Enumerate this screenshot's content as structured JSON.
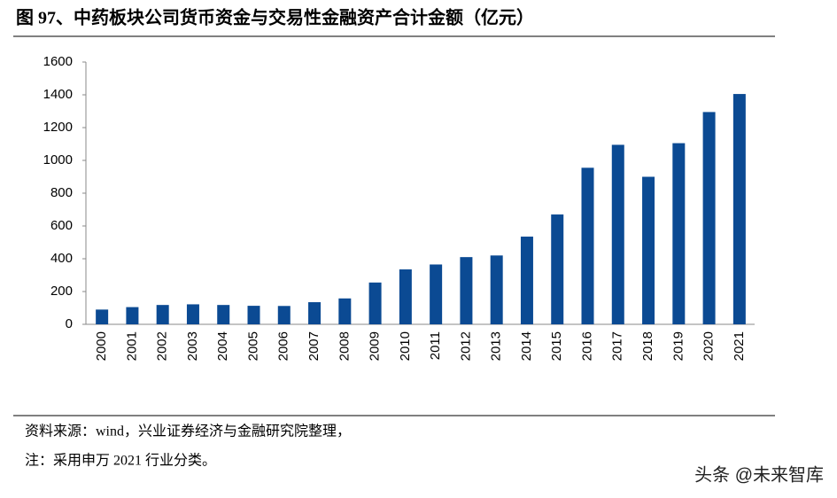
{
  "chart_data": {
    "type": "bar",
    "title": "图 97、中药板块公司货币资金与交易性金融资产合计金额（亿元）",
    "categories": [
      "2000",
      "2001",
      "2002",
      "2003",
      "2004",
      "2005",
      "2006",
      "2007",
      "2008",
      "2009",
      "2010",
      "2011",
      "2012",
      "2013",
      "2014",
      "2015",
      "2016",
      "2017",
      "2018",
      "2019",
      "2020",
      "2021"
    ],
    "values": [
      90,
      105,
      118,
      122,
      118,
      113,
      112,
      135,
      158,
      255,
      335,
      365,
      410,
      420,
      535,
      670,
      955,
      1095,
      900,
      1105,
      1295,
      1405
    ],
    "color": "#0b4a93",
    "ylim": [
      0,
      1600
    ],
    "yticks": [
      0,
      200,
      400,
      600,
      800,
      1000,
      1200,
      1400,
      1600
    ],
    "grid": false,
    "source": "资料来源：wind，兴业证券经济与金融研究院整理，",
    "note": "注：采用申万 2021 行业分类。",
    "watermark": "头条 @未来智库"
  }
}
